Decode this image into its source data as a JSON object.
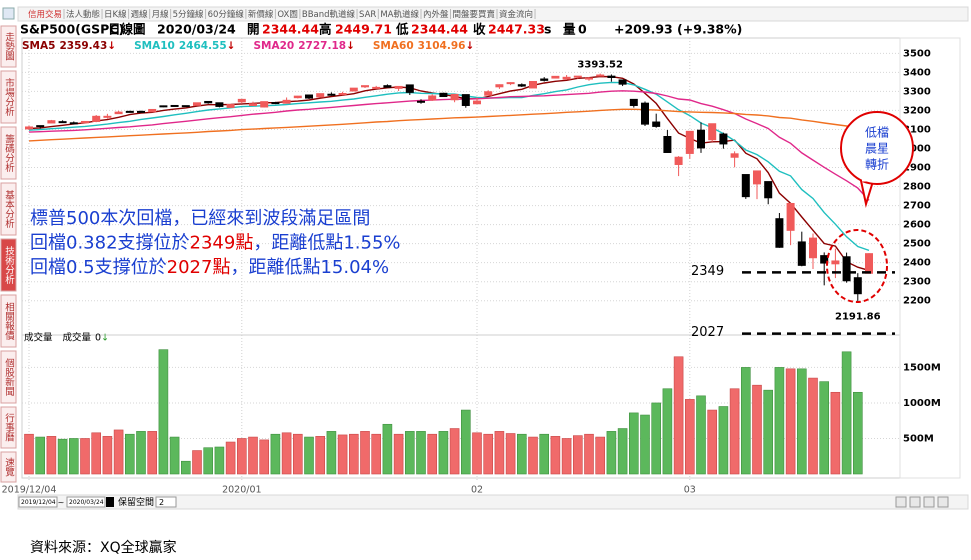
{
  "toolbar": [
    "信用交易",
    "法人動態",
    "日K線",
    "週線",
    "月線",
    "5分鐘線",
    "60分鐘線",
    "新價線",
    "OX圖",
    "BBand軌道線",
    "SAR",
    "MA軌道線",
    "內外盤",
    "間盤要買賣",
    "資金流向"
  ],
  "toolbar_active": 0,
  "sidebar": [
    "走勢圖",
    "市場分析",
    "籌碼分析",
    "基本分析",
    "技術分析",
    "相關報價",
    "個股新聞",
    "行事曆",
    "速覽"
  ],
  "sidebar_active": 4,
  "header": {
    "symbol": "S&P500(GSPC)",
    "period": "日線圖",
    "date": "2020/03/24",
    "open_label": "開",
    "open": 2344.44,
    "high_label": "高",
    "high": 2449.71,
    "low_label": "低",
    "low": 2344.44,
    "close_label": "收",
    "close": 2447.33,
    "close_flag": "s",
    "volume_label": "量",
    "volume": 0,
    "change": "+209.93 (+9.38%)"
  },
  "commentary": [
    [
      "標普500本次回檔，已經來到波段滿足區間"
    ],
    [
      "回檔0.382支撐位於",
      "2349點",
      "，距離低點1.55%"
    ],
    [
      "回檔0.5支撐位於",
      "2027點",
      "，距離低點15.04%"
    ]
  ],
  "callout": [
    "低檔",
    "晨星",
    "轉折"
  ],
  "chart_data": [
    {
      "type": "candlestick",
      "categories": [
        "2019/12/04",
        null,
        null,
        null,
        null,
        null,
        null,
        null,
        null,
        null,
        null,
        null,
        null,
        null,
        null,
        null,
        null,
        null,
        null,
        "2020/01",
        null,
        null,
        null,
        null,
        null,
        null,
        null,
        null,
        null,
        null,
        null,
        null,
        null,
        null,
        null,
        null,
        null,
        null,
        null,
        null,
        "02",
        null,
        null,
        null,
        null,
        null,
        null,
        null,
        null,
        null,
        null,
        null,
        null,
        null,
        null,
        null,
        null,
        null,
        null,
        "03",
        null,
        null,
        null,
        null,
        null,
        null,
        null,
        null,
        null,
        null,
        null,
        null,
        null,
        null,
        null,
        null
      ],
      "ohlc": [
        [
          3103,
          3120,
          3098,
          3113
        ],
        [
          3120,
          3120,
          3104,
          3117
        ],
        [
          3134,
          3150,
          3134,
          3146
        ],
        [
          3141,
          3148,
          3135,
          3136
        ],
        [
          3135,
          3142,
          3126,
          3133
        ],
        [
          3135,
          3144,
          3133,
          3142
        ],
        [
          3142,
          3176,
          3138,
          3169
        ],
        [
          3167,
          3182,
          3157,
          3169
        ],
        [
          3183,
          3198,
          3182,
          3191
        ],
        [
          3195,
          3198,
          3191,
          3193
        ],
        [
          3195,
          3199,
          3191,
          3191
        ],
        [
          3193,
          3205,
          3192,
          3205
        ],
        [
          3224,
          3226,
          3217,
          3221
        ],
        [
          3226,
          3227,
          3222,
          3224
        ],
        [
          3225,
          3226,
          3220,
          3223
        ],
        [
          3227,
          3240,
          3227,
          3240
        ],
        [
          3247,
          3248,
          3235,
          3240
        ],
        [
          3240,
          3240,
          3216,
          3221
        ],
        [
          3216,
          3232,
          3213,
          3231
        ],
        [
          3245,
          3258,
          3235,
          3258
        ],
        [
          3226,
          3246,
          3223,
          3235
        ],
        [
          3218,
          3247,
          3215,
          3246
        ],
        [
          3241,
          3245,
          3233,
          3237
        ],
        [
          3238,
          3268,
          3236,
          3253
        ],
        [
          3267,
          3276,
          3263,
          3275
        ],
        [
          3281,
          3282,
          3260,
          3265
        ],
        [
          3271,
          3288,
          3268,
          3288
        ],
        [
          3285,
          3295,
          3277,
          3283
        ],
        [
          3283,
          3298,
          3280,
          3289
        ],
        [
          3302,
          3317,
          3302,
          3317
        ],
        [
          3324,
          3330,
          3318,
          3330
        ],
        [
          3321,
          3329,
          3316,
          3321
        ],
        [
          3330,
          3337,
          3320,
          3322
        ],
        [
          3316,
          3326,
          3302,
          3326
        ],
        [
          3334,
          3334,
          3281,
          3295
        ],
        [
          3248,
          3259,
          3235,
          3244
        ],
        [
          3255,
          3285,
          3250,
          3276
        ],
        [
          3290,
          3293,
          3271,
          3273
        ],
        [
          3256,
          3286,
          3243,
          3284
        ],
        [
          3283,
          3283,
          3214,
          3226
        ],
        [
          3235,
          3268,
          3235,
          3249
        ],
        [
          3280,
          3306,
          3280,
          3298
        ],
        [
          3324,
          3337,
          3313,
          3335
        ],
        [
          3344,
          3348,
          3333,
          3346
        ],
        [
          3335,
          3342,
          3323,
          3328
        ],
        [
          3318,
          3352,
          3317,
          3352
        ],
        [
          3365,
          3375,
          3352,
          3358
        ],
        [
          3370,
          3381,
          3369,
          3379
        ],
        [
          3365,
          3386,
          3360,
          3374
        ],
        [
          3379,
          3381,
          3367,
          3380
        ],
        [
          3370,
          3375,
          3356,
          3370
        ],
        [
          3381,
          3393.52,
          3378,
          3386
        ],
        [
          3380,
          3389,
          3351,
          3373
        ],
        [
          3360,
          3360,
          3328,
          3338
        ],
        [
          3258,
          3259,
          3215,
          3226
        ],
        [
          3238,
          3247,
          3118,
          3128
        ],
        [
          3139,
          3183,
          3109,
          3116
        ],
        [
          3063,
          3097,
          2977,
          2979
        ],
        [
          2916,
          2960,
          2855,
          2954
        ],
        [
          2974,
          3091,
          2946,
          3090
        ],
        [
          3096,
          3137,
          2977,
          3003
        ],
        [
          3046,
          3131,
          3035,
          3130
        ],
        [
          3076,
          3083,
          2999,
          3024
        ],
        [
          2954,
          2985,
          2901,
          2972
        ],
        [
          2863,
          2863,
          2735,
          2747
        ],
        [
          2814,
          2883,
          2734,
          2882
        ],
        [
          2826,
          2826,
          2707,
          2741
        ],
        [
          2631,
          2661,
          2478,
          2481
        ],
        [
          2570,
          2711,
          2492,
          2711
        ],
        [
          2509,
          2563,
          2381,
          2386
        ],
        [
          2426,
          2553,
          2367,
          2529
        ],
        [
          2437,
          2454,
          2281,
          2398
        ],
        [
          2394,
          2474,
          2319,
          2409
        ],
        [
          2431,
          2453,
          2295,
          2305
        ],
        [
          2321,
          2345,
          2191.86,
          2237
        ],
        [
          2344.44,
          2449.71,
          2344.44,
          2447.33
        ]
      ],
      "up_color": "#f05a5a",
      "down_color": "#000000",
      "series": [
        {
          "name": "SMA5",
          "color": "#8b0000",
          "last": 2359.43,
          "trend": "↓",
          "values": [
            3105,
            3108,
            3115,
            3122,
            3129,
            3135,
            3145,
            3152,
            3164,
            3178,
            3186,
            3190,
            3200,
            3207,
            3213,
            3223,
            3230,
            3230,
            3231,
            3234,
            3237,
            3240,
            3241,
            3246,
            3249,
            3255,
            3264,
            3273,
            3280,
            3288,
            3303,
            3312,
            3319,
            3323,
            3319,
            3302,
            3292,
            3283,
            3274,
            3261,
            3261,
            3273,
            3288,
            3302,
            3311,
            3332,
            3344,
            3353,
            3358,
            3369,
            3372,
            3378,
            3377,
            3369,
            3339,
            3290,
            3237,
            3157,
            3081,
            3053,
            3028,
            3035,
            3036,
            3044,
            2975,
            2946,
            2873,
            2765,
            2712,
            2640,
            2570,
            2501,
            2487,
            2405,
            2376,
            2359.43
          ]
        },
        {
          "name": "SMA10",
          "color": "#1fbfbf",
          "last": 2464.55,
          "trend": "↓",
          "values": [
            3096,
            3099,
            3104,
            3107,
            3112,
            3116,
            3122,
            3128,
            3136,
            3143,
            3153,
            3160,
            3168,
            3177,
            3185,
            3194,
            3202,
            3208,
            3214,
            3220,
            3222,
            3225,
            3227,
            3231,
            3236,
            3240,
            3244,
            3248,
            3254,
            3260,
            3269,
            3277,
            3285,
            3292,
            3294,
            3290,
            3289,
            3287,
            3286,
            3276,
            3268,
            3265,
            3266,
            3268,
            3268,
            3279,
            3288,
            3299,
            3308,
            3323,
            3335,
            3343,
            3347,
            3346,
            3334,
            3311,
            3285,
            3245,
            3203,
            3173,
            3134,
            3109,
            3078,
            3041,
            2992,
            2968,
            2930,
            2880,
            2856,
            2784,
            2737,
            2663,
            2602,
            2536,
            2485,
            2464.55
          ]
        },
        {
          "name": "SMA20",
          "color": "#e0288a",
          "last": 2727.18,
          "trend": "↓",
          "values": [
            3086,
            3088,
            3091,
            3093,
            3095,
            3098,
            3102,
            3106,
            3110,
            3114,
            3119,
            3124,
            3131,
            3137,
            3143,
            3149,
            3156,
            3162,
            3167,
            3174,
            3180,
            3185,
            3190,
            3197,
            3202,
            3206,
            3211,
            3216,
            3221,
            3226,
            3231,
            3236,
            3240,
            3245,
            3249,
            3252,
            3254,
            3257,
            3259,
            3259,
            3261,
            3264,
            3268,
            3272,
            3273,
            3275,
            3277,
            3280,
            3283,
            3287,
            3290,
            3296,
            3301,
            3303,
            3301,
            3297,
            3289,
            3276,
            3260,
            3255,
            3236,
            3222,
            3204,
            3184,
            3155,
            3131,
            3105,
            3059,
            3027,
            2977,
            2939,
            2901,
            2865,
            2830,
            2792,
            2727.18
          ]
        },
        {
          "name": "SMA60",
          "color": "#f07020",
          "last": 3104.96,
          "trend": "↓",
          "values": [
            3040,
            3043,
            3046,
            3049,
            3052,
            3055,
            3058,
            3061,
            3064,
            3067,
            3070,
            3073,
            3076,
            3079,
            3082,
            3085,
            3089,
            3092,
            3095,
            3099,
            3102,
            3105,
            3108,
            3111,
            3114,
            3117,
            3120,
            3124,
            3127,
            3131,
            3135,
            3139,
            3142,
            3146,
            3149,
            3152,
            3155,
            3158,
            3161,
            3163,
            3165,
            3168,
            3171,
            3174,
            3177,
            3180,
            3183,
            3186,
            3190,
            3193,
            3196,
            3200,
            3203,
            3206,
            3206,
            3204,
            3202,
            3198,
            3194,
            3192,
            3190,
            3189,
            3187,
            3184,
            3179,
            3176,
            3171,
            3163,
            3159,
            3150,
            3143,
            3134,
            3126,
            3118,
            3109,
            3104.96
          ]
        }
      ],
      "peak": 3393.52,
      "trough": 2191.86,
      "support_levels": [
        2349,
        2027
      ],
      "ylim": [
        2020,
        3570
      ],
      "yticks": [
        2200,
        2300,
        2400,
        2500,
        2600,
        2700,
        2800,
        2900,
        3000,
        3100,
        3200,
        3300,
        3400,
        3500
      ],
      "grid": true
    },
    {
      "type": "bar",
      "title": "成交量",
      "series_name": "成交量",
      "last": 0,
      "trend": "↓",
      "values": [
        560,
        520,
        530,
        490,
        500,
        500,
        580,
        530,
        620,
        560,
        600,
        600,
        1750,
        520,
        180,
        330,
        370,
        380,
        450,
        500,
        520,
        480,
        560,
        580,
        560,
        520,
        530,
        600,
        550,
        560,
        600,
        560,
        700,
        560,
        600,
        600,
        560,
        600,
        640,
        900,
        580,
        560,
        600,
        570,
        560,
        520,
        560,
        530,
        500,
        540,
        560,
        520,
        600,
        640,
        860,
        830,
        1000,
        1200,
        1650,
        1050,
        1100,
        900,
        950,
        1200,
        1500,
        1250,
        1180,
        1500,
        1480,
        1480,
        1350,
        1300,
        1150,
        1720,
        1150,
        0
      ],
      "up_color": "#f06a6a",
      "down_color": "#5cb85c",
      "ylim": [
        0,
        1900
      ],
      "yticks": [
        {
          "value": 500,
          "label": "500M"
        },
        {
          "value": 1000,
          "label": "1000M"
        },
        {
          "value": 1500,
          "label": "1500M"
        }
      ],
      "grid": true
    }
  ],
  "controls": {
    "range_start": "2019/12/04",
    "range_sep": "~",
    "range_end": "2020/03/24",
    "reserve_label": "保留空間",
    "reserve": 2
  },
  "footer": "資料來源：XQ全球贏家"
}
